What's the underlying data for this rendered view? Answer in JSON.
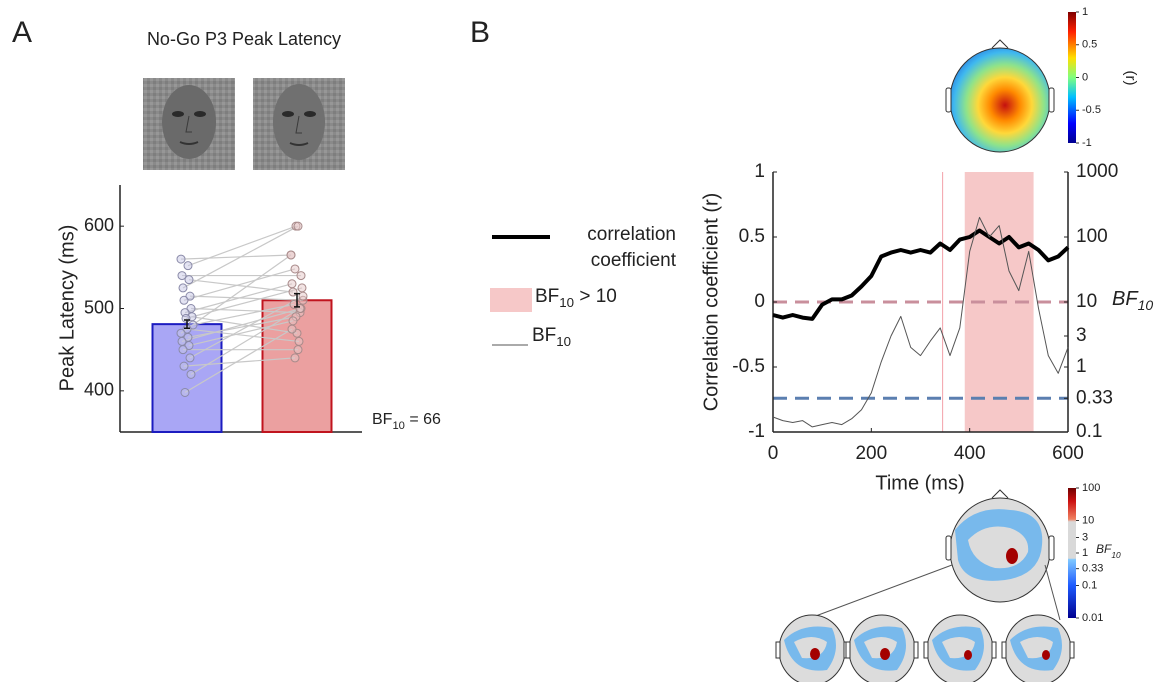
{
  "chart_data": [
    {
      "type": "bar",
      "panel": "A",
      "title": "No-Go P3 Peak Latency",
      "ylabel": "Peak Latency (ms)",
      "categories": [
        null,
        null
      ],
      "values": [
        481,
        510
      ],
      "errors": [
        5,
        8
      ],
      "colors": [
        "#a9a6f5",
        "#eba0a0"
      ],
      "edge_colors": [
        "#1c1cc0",
        "#c0141e"
      ],
      "ylim": [
        350,
        650
      ],
      "yticks": [
        400,
        500,
        600
      ],
      "paired_points": {
        "left": [
          560,
          552,
          540,
          535,
          525,
          515,
          510,
          500,
          495,
          490,
          488,
          480,
          475,
          470,
          465,
          460,
          455,
          450,
          440,
          430,
          420,
          398
        ],
        "right": [
          565,
          600,
          540,
          520,
          600,
          510,
          548,
          495,
          530,
          470,
          525,
          505,
          460,
          565,
          490,
          500,
          485,
          450,
          515,
          440,
          500,
          475
        ]
      },
      "annotation": {
        "base": "BF",
        "sub": "10",
        "suffix": " = 66"
      }
    },
    {
      "type": "line",
      "panel": "B",
      "xlabel": "Time (ms)",
      "ylabel": "Correlation coefficient (r)",
      "y2label": {
        "base": "BF",
        "sub": "10"
      },
      "x": [
        0,
        20,
        40,
        60,
        80,
        100,
        120,
        140,
        160,
        180,
        200,
        220,
        240,
        260,
        280,
        300,
        320,
        340,
        360,
        380,
        400,
        420,
        440,
        460,
        480,
        500,
        520,
        540,
        560,
        580,
        600
      ],
      "series": [
        {
          "name": "correlation coefficient",
          "color": "#000000",
          "values": [
            -0.1,
            -0.12,
            -0.1,
            -0.12,
            -0.13,
            -0.02,
            0.02,
            0.02,
            0.05,
            0.12,
            0.2,
            0.35,
            0.38,
            0.4,
            0.38,
            0.4,
            0.38,
            0.45,
            0.4,
            0.48,
            0.5,
            0.55,
            0.5,
            0.45,
            0.5,
            0.42,
            0.45,
            0.4,
            0.32,
            0.35,
            0.42
          ]
        },
        {
          "name": {
            "base": "BF",
            "sub": "10"
          },
          "color": "#555555",
          "axis": "y2",
          "values": [
            0.17,
            0.15,
            0.14,
            0.15,
            0.12,
            0.13,
            0.14,
            0.13,
            0.16,
            0.22,
            0.4,
            1.2,
            3,
            6,
            2,
            1.5,
            2.5,
            4,
            1.5,
            4,
            60,
            200,
            100,
            150,
            30,
            15,
            60,
            8,
            1.5,
            0.8,
            2
          ]
        }
      ],
      "xlim": [
        0,
        600
      ],
      "xticks": [
        0,
        200,
        400,
        600
      ],
      "ylim": [
        -1,
        1
      ],
      "yticks": [
        -1,
        -0.5,
        0,
        0.5,
        1
      ],
      "y2lim": [
        0.1,
        1000
      ],
      "y2_log": true,
      "y2ticks": [
        0.1,
        0.33,
        1,
        3,
        10,
        100,
        1000
      ],
      "highlight": {
        "range": [
          390,
          530
        ],
        "color": "#f6c8c8",
        "label": {
          "base": "BF",
          "sub": "10",
          "suffix": " > 10"
        }
      },
      "vline": 345,
      "y2_reference_lines": [
        {
          "value": 10,
          "color": "#c98f9c"
        },
        {
          "value": 0.33,
          "color": "#5b7fb0"
        }
      ],
      "colorbars": [
        {
          "label": "(r)",
          "lim": [
            -1,
            1
          ],
          "log": false,
          "ticks": [
            1,
            0.5,
            0,
            -0.5,
            -1
          ]
        },
        {
          "label": {
            "base": "BF",
            "sub": "10"
          },
          "lim": [
            0.01,
            100
          ],
          "log": true,
          "ticks": [
            100,
            10,
            3,
            1,
            0.33,
            0.1,
            0.01
          ]
        }
      ]
    }
  ]
}
